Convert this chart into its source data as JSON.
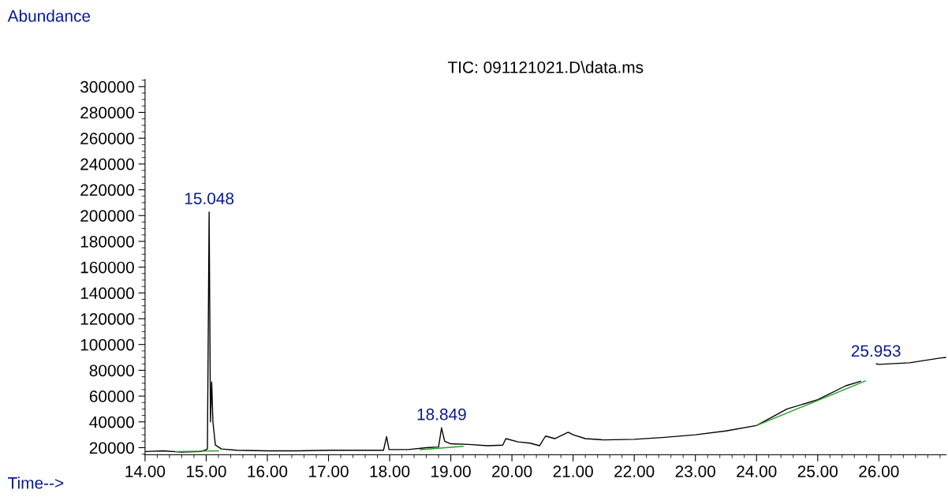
{
  "chart_data": {
    "type": "line",
    "title": "TIC: 091121021.D\\data.ms",
    "xlabel": "Time-->",
    "ylabel": "Abundance",
    "xlim": [
      14.0,
      27.1
    ],
    "ylim": [
      14500,
      305500
    ],
    "xticks": [
      {
        "value": 14,
        "label": "14.00"
      },
      {
        "value": 15,
        "label": "15.00"
      },
      {
        "value": 16,
        "label": "16.00"
      },
      {
        "value": 17,
        "label": "17.00"
      },
      {
        "value": 18,
        "label": "18.00"
      },
      {
        "value": 19,
        "label": "19.00"
      },
      {
        "value": 20,
        "label": "20.00"
      },
      {
        "value": 21,
        "label": "21.00"
      },
      {
        "value": 22,
        "label": "22.00"
      },
      {
        "value": 23,
        "label": "23.00"
      },
      {
        "value": 24,
        "label": "24.00"
      },
      {
        "value": 25,
        "label": "25.00"
      },
      {
        "value": 26,
        "label": "26.00"
      }
    ],
    "yticks": [
      20000,
      40000,
      60000,
      80000,
      100000,
      120000,
      140000,
      160000,
      180000,
      200000,
      220000,
      240000,
      260000,
      280000,
      300000
    ],
    "grid": false,
    "series": [
      {
        "color": "#000000",
        "x": [
          14.0,
          14.3,
          14.6,
          14.9,
          14.98,
          15.02,
          15.048,
          15.07,
          15.09,
          15.11,
          15.15,
          15.25,
          15.5,
          16.0,
          16.5,
          17.0,
          17.5,
          17.9,
          17.95,
          17.99,
          18.3,
          18.6,
          18.8,
          18.849,
          18.9,
          19.0,
          19.3,
          19.6,
          19.85,
          19.9,
          20.1,
          20.3,
          20.45,
          20.55,
          20.7,
          20.92,
          21.0,
          21.2,
          21.5,
          22.0,
          22.5,
          23.0,
          23.5,
          24.0,
          24.5,
          25.0,
          25.46,
          25.7,
          25.75,
          25.96,
          26.0,
          26.5,
          27.0,
          27.1
        ],
        "values": [
          17000,
          17500,
          16500,
          17000,
          18000,
          19000,
          202800,
          40000,
          71000,
          40000,
          22000,
          19000,
          18000,
          17500,
          17500,
          18000,
          18000,
          18000,
          28600,
          18500,
          18500,
          20000,
          20500,
          35400,
          25000,
          23000,
          22500,
          21500,
          22000,
          27000,
          24500,
          23500,
          21500,
          29000,
          27000,
          32000,
          30000,
          27000,
          26000,
          26500,
          28000,
          30000,
          33000,
          37200,
          50000,
          57200,
          68000,
          71400,
          null,
          85000,
          84600,
          85800,
          89500,
          90000
        ]
      },
      {
        "color": "#22a022",
        "x": [
          14.5,
          15.2
        ],
        "values": [
          17000,
          17500
        ]
      },
      {
        "color": "#22a022",
        "x": [
          18.5,
          19.2
        ],
        "values": [
          18500,
          21000
        ]
      },
      {
        "color": "#22a022",
        "x": [
          24.0,
          25.78
        ],
        "values": [
          37200,
          71700
        ]
      }
    ],
    "annotations": [
      {
        "text": "15.048",
        "x": 15.048,
        "y": 202800
      },
      {
        "text": "18.849",
        "x": 18.849,
        "y": 35400
      },
      {
        "text": "25.953",
        "x": 25.953,
        "y": 84600
      }
    ]
  }
}
